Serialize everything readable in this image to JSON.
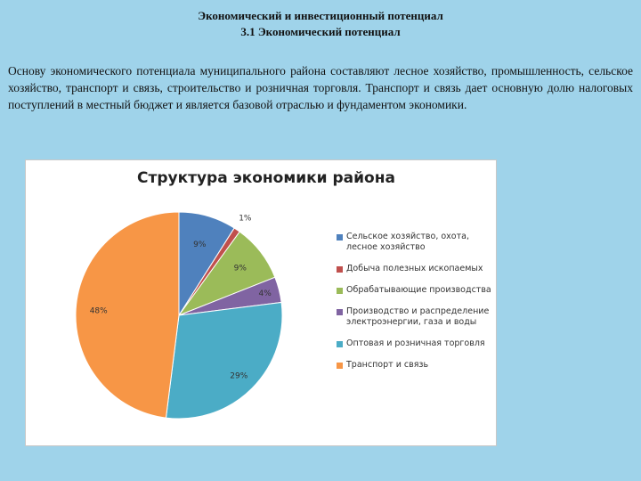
{
  "header": {
    "title_line1": "Экономический и инвестиционный потенциал",
    "title_line2": "3.1 Экономический потенциал"
  },
  "paragraph": "Основу экономического потенциала муниципального района составляют лесное хозяйство, промышленность, сельское хозяйство, транспорт и связь, строительство и розничная торговля. Транспорт и связь дает основную долю налоговых поступлений в местный бюджет и является базовой отраслью и фундаментом экономики.",
  "chart_data": {
    "type": "pie",
    "title": "Структура экономики района",
    "categories": [
      "Сельское хозяйство, охота, лесное хозяйство",
      "Добыча полезных ископаемых",
      "Обрабатывающие производства",
      "Производство и распределение электроэнергии, газа и воды",
      "Оптовая и розничная торговля",
      "Транспорт и связь"
    ],
    "values": [
      9,
      1,
      9,
      4,
      29,
      48
    ],
    "value_labels": [
      "9%",
      "1%",
      "9%",
      "4%",
      "29%",
      "48%"
    ],
    "colors": [
      "#4f81bd",
      "#c0504d",
      "#9bbb59",
      "#8064a2",
      "#4bacc6",
      "#f79646"
    ],
    "legend_position": "right"
  }
}
